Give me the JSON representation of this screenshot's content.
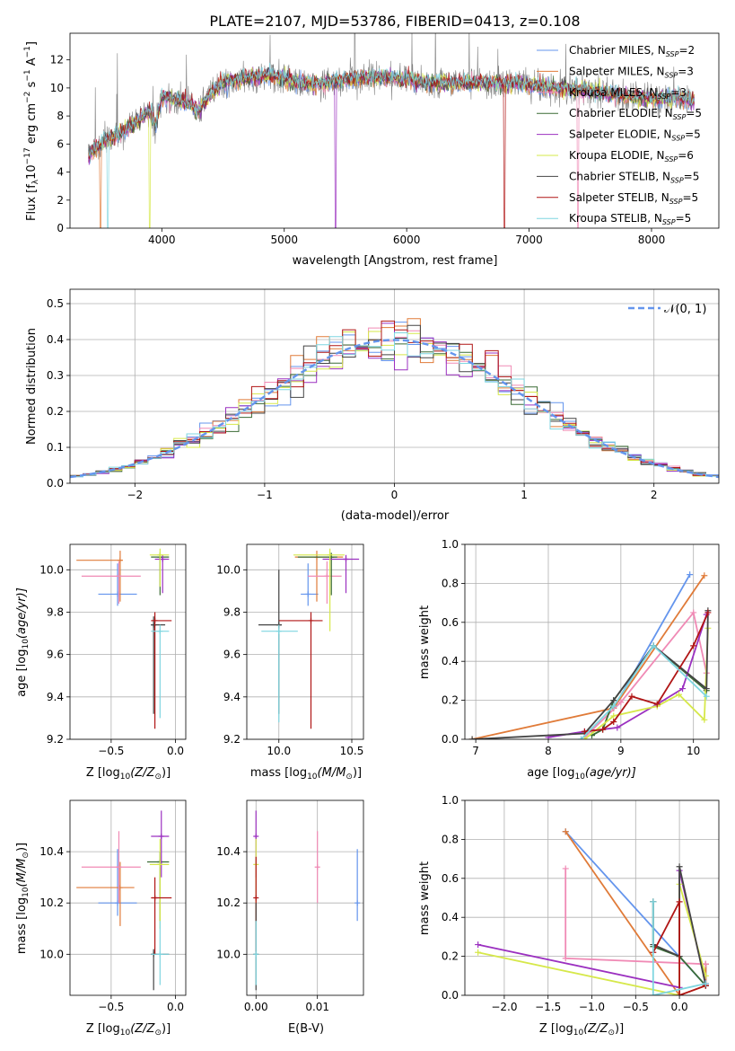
{
  "figure_title": "PLATE=2107, MJD=53786, FIBERID=0413, z=0.108",
  "colors": {
    "chabrier_miles": "#6495ed",
    "salpeter_miles": "#e07b39",
    "kroupa_miles": "#f08ab5",
    "chabrier_elodie": "#3a6b35",
    "salpeter_elodie": "#9b30c0",
    "kroupa_elodie": "#d6e84a",
    "chabrier_stelib": "#444444",
    "salpeter_stelib": "#b01515",
    "kroupa_stelib": "#7fd6e0",
    "data": "#808080"
  },
  "panels": {
    "spectrum": {
      "ylabel_main": "Flux [f",
      "ylabel_sub": "λ",
      "ylabel_rest": "10",
      "ylabel_exp1": "−17",
      "ylabel_mid": " erg cm",
      "ylabel_exp2": "−2",
      "ylabel_mid2": " s",
      "ylabel_exp3": "−1",
      "ylabel_mid3": " A",
      "ylabel_exp4": "−1",
      "ylabel_end": "]",
      "xlabel": "wavelength [Angstrom, rest frame]"
    },
    "residuals": {
      "ylabel": "Normed distribution",
      "xlabel": "(data-model)/error",
      "legend_label": "𝒩(0, 1)"
    },
    "age_z": {
      "ylabel": "age  [log",
      "ylabel_sub": "10",
      "ylabel_end": "(age/yr)]",
      "xlabel": "Z [log",
      "xlabel_sub": "10",
      "xlabel_end": "(Z/Z",
      "xlabel_sun": "⊙",
      "xlabel_close": ")]"
    },
    "age_mass": {
      "xlabel": "mass [log",
      "xlabel_sub": "10",
      "xlabel_end": "(M/M",
      "xlabel_sun": "⊙",
      "xlabel_close": ")]"
    },
    "mw_age": {
      "ylabel": "mass weight",
      "xlabel": "age  [log",
      "xlabel_sub": "10",
      "xlabel_end": "(age/yr)]"
    },
    "mass_z": {
      "ylabel": "mass [log",
      "ylabel_sub": "10",
      "ylabel_end": "(M/M",
      "ylabel_sun": "⊙",
      "ylabel_close": ")]",
      "xlabel": "Z [log",
      "xlabel_sub": "10",
      "xlabel_end": "(Z/Z",
      "xlabel_sun": "⊙",
      "xlabel_close": ")]"
    },
    "mass_ebv": {
      "xlabel": "E(B-V)"
    },
    "mw_z": {
      "ylabel": "mass weight",
      "xlabel": "Z [log",
      "xlabel_sub": "10",
      "xlabel_end": "(Z/Z",
      "xlabel_sun": "⊙",
      "xlabel_close": ")]"
    }
  },
  "chart_data": [
    {
      "id": "spectrum",
      "type": "line",
      "title": "PLATE=2107, MJD=53786, FIBERID=0413, z=0.108",
      "xlabel": "wavelength [Angstrom, rest frame]",
      "ylabel": "Flux [fλ10−17 erg cm−2 s−1 A−1]",
      "xlim": [
        3250,
        8550
      ],
      "ylim": [
        0,
        13.9
      ],
      "xticks": [
        4000,
        5000,
        6000,
        7000,
        8000
      ],
      "yticks": [
        0,
        2,
        4,
        6,
        8,
        10,
        12
      ],
      "grid": false,
      "legend": "top-right",
      "continuum_knots": {
        "x": [
          3400,
          3500,
          3600,
          3700,
          3800,
          3900,
          3950,
          4000,
          4100,
          4200,
          4300,
          4400,
          4500,
          4700,
          4900,
          5100,
          5300,
          5500,
          5800,
          6000,
          6300,
          6600,
          6900,
          7200,
          7500,
          7800,
          8000,
          8200,
          8350
        ],
        "y": [
          5.2,
          6.0,
          6.5,
          7.0,
          7.6,
          8.3,
          7.4,
          9.4,
          9.2,
          9.0,
          8.3,
          9.6,
          10.4,
          10.7,
          10.9,
          10.4,
          10.3,
          10.6,
          10.8,
          10.6,
          10.3,
          10.4,
          10.3,
          10.0,
          9.8,
          9.4,
          9.2,
          9.3,
          9.1
        ]
      },
      "series": [
        {
          "name": "Chabrier MILES, N",
          "sub": "SSP",
          "suffix": "=2",
          "color": "#6495ed"
        },
        {
          "name": "Salpeter MILES, N",
          "sub": "SSP",
          "suffix": "=3",
          "color": "#e07b39"
        },
        {
          "name": "Kroupa MILES, N",
          "sub": "SSP",
          "suffix": "=3",
          "color": "#f08ab5"
        },
        {
          "name": "Chabrier ELODIE, N",
          "sub": "SSP",
          "suffix": "=5",
          "color": "#3a6b35"
        },
        {
          "name": "Salpeter ELODIE, N",
          "sub": "SSP",
          "suffix": "=5",
          "color": "#9b30c0"
        },
        {
          "name": "Kroupa ELODIE, N",
          "sub": "SSP",
          "suffix": "=6",
          "color": "#d6e84a"
        },
        {
          "name": "Chabrier STELIB, N",
          "sub": "SSP",
          "suffix": "=5",
          "color": "#444444"
        },
        {
          "name": "Salpeter STELIB, N",
          "sub": "SSP",
          "suffix": "=5",
          "color": "#b01515"
        },
        {
          "name": "Kroupa STELIB, N",
          "sub": "SSP",
          "suffix": "=5",
          "color": "#7fd6e0"
        }
      ]
    },
    {
      "id": "residuals",
      "type": "line",
      "xlabel": "(data-model)/error",
      "ylabel": "Normed distribution",
      "xlim": [
        -2.5,
        2.5
      ],
      "ylim": [
        0,
        0.54
      ],
      "xticks": [
        -2,
        -1,
        0,
        1,
        2
      ],
      "yticks": [
        0.0,
        0.1,
        0.2,
        0.3,
        0.4,
        0.5
      ],
      "grid": true,
      "legend": "top-right",
      "bin_width": 0.1,
      "series": [
        {
          "name": "𝒩(0, 1)",
          "kind": "gaussian",
          "mu": 0,
          "sigma": 1,
          "color": "#6495ed"
        }
      ]
    },
    {
      "id": "age_vs_Z",
      "type": "scatter",
      "xlabel": "Z [log10(Z/Z⊙)]",
      "ylabel": "age  [log10(age/yr)]",
      "xlim": [
        -0.82,
        0.08
      ],
      "ylim": [
        9.2,
        10.12
      ],
      "xticks": [
        -0.5,
        0.0
      ],
      "yticks": [
        9.2,
        9.4,
        9.6,
        9.8,
        10.0
      ],
      "grid": true,
      "points": [
        {
          "color": "#6495ed",
          "x": -0.45,
          "xlo": -0.6,
          "xhi": -0.3,
          "y": 9.885,
          "ylo": 9.83,
          "yhi": 10.03
        },
        {
          "color": "#e07b39",
          "x": -0.43,
          "xlo": -0.77,
          "xhi": -0.41,
          "y": 10.045,
          "ylo": 9.85,
          "yhi": 10.09
        },
        {
          "color": "#f08ab5",
          "x": -0.44,
          "xlo": -0.73,
          "xhi": -0.27,
          "y": 9.97,
          "ylo": 9.84,
          "yhi": 10.04
        },
        {
          "color": "#3a6b35",
          "x": -0.12,
          "xlo": -0.19,
          "xhi": -0.05,
          "y": 10.06,
          "ylo": 9.88,
          "yhi": 10.08
        },
        {
          "color": "#9b30c0",
          "x": -0.1,
          "xlo": -0.16,
          "xhi": -0.05,
          "y": 10.05,
          "ylo": 9.89,
          "yhi": 10.07
        },
        {
          "color": "#d6e84a",
          "x": -0.12,
          "xlo": -0.2,
          "xhi": -0.05,
          "y": 10.07,
          "ylo": 9.92,
          "yhi": 10.1
        },
        {
          "color": "#444444",
          "x": -0.17,
          "xlo": -0.19,
          "xhi": -0.08,
          "y": 9.74,
          "ylo": 9.32,
          "yhi": 9.78
        },
        {
          "color": "#b01515",
          "x": -0.16,
          "xlo": -0.19,
          "xhi": -0.03,
          "y": 9.76,
          "ylo": 9.25,
          "yhi": 9.8
        },
        {
          "color": "#7fd6e0",
          "x": -0.12,
          "xlo": -0.19,
          "xhi": -0.05,
          "y": 9.71,
          "ylo": 9.3,
          "yhi": 9.74
        }
      ]
    },
    {
      "id": "age_vs_mass",
      "type": "scatter",
      "xlabel": "mass [log10(M/M⊙)]",
      "xlim": [
        9.78,
        10.58
      ],
      "ylim": [
        9.2,
        10.12
      ],
      "xticks": [
        10.0,
        10.5
      ],
      "yticks": [
        9.2,
        9.4,
        9.6,
        9.8,
        10.0
      ],
      "grid": true,
      "points": [
        {
          "color": "#6495ed",
          "x": 10.2,
          "xlo": 10.15,
          "xhi": 10.27,
          "y": 9.885,
          "ylo": 9.83,
          "yhi": 10.03
        },
        {
          "color": "#e07b39",
          "x": 10.26,
          "xlo": 10.11,
          "xhi": 10.44,
          "y": 10.06,
          "ylo": 9.85,
          "yhi": 10.09
        },
        {
          "color": "#f08ab5",
          "x": 10.33,
          "xlo": 10.2,
          "xhi": 10.43,
          "y": 9.97,
          "ylo": 9.84,
          "yhi": 10.04
        },
        {
          "color": "#3a6b35",
          "x": 10.36,
          "xlo": 10.13,
          "xhi": 10.4,
          "y": 10.06,
          "ylo": 9.88,
          "yhi": 10.08
        },
        {
          "color": "#9b30c0",
          "x": 10.46,
          "xlo": 10.3,
          "xhi": 10.55,
          "y": 10.05,
          "ylo": 9.89,
          "yhi": 10.07
        },
        {
          "color": "#d6e84a",
          "x": 10.35,
          "xlo": 10.1,
          "xhi": 10.45,
          "y": 10.07,
          "ylo": 9.71,
          "yhi": 10.1
        },
        {
          "color": "#444444",
          "x": 10.0,
          "xlo": 9.86,
          "xhi": 10.02,
          "y": 9.74,
          "ylo": 9.32,
          "yhi": 10.0
        },
        {
          "color": "#b01515",
          "x": 10.22,
          "xlo": 10.0,
          "xhi": 10.3,
          "y": 9.76,
          "ylo": 9.25,
          "yhi": 9.8
        },
        {
          "color": "#7fd6e0",
          "x": 10.0,
          "xlo": 9.88,
          "xhi": 10.13,
          "y": 9.71,
          "ylo": 9.28,
          "yhi": 9.74
        }
      ]
    },
    {
      "id": "massweight_vs_age",
      "type": "line",
      "xlabel": "age  [log10(age/yr)]",
      "ylabel": "mass weight",
      "xlim": [
        6.85,
        10.35
      ],
      "ylim": [
        0,
        1.0
      ],
      "xticks": [
        7,
        8,
        9,
        10
      ],
      "yticks": [
        0.0,
        0.2,
        0.4,
        0.6,
        0.8,
        1.0
      ],
      "grid": true,
      "series": [
        {
          "color": "#6495ed",
          "x": [
            8.9,
            9.95
          ],
          "y": [
            0.16,
            0.845
          ]
        },
        {
          "color": "#e07b39",
          "x": [
            6.95,
            8.9,
            10.15
          ],
          "y": [
            0.0,
            0.16,
            0.84
          ]
        },
        {
          "color": "#f08ab5",
          "x": [
            8.5,
            9.0,
            10.0,
            10.18
          ],
          "y": [
            0.01,
            0.19,
            0.65,
            0.34
          ]
        },
        {
          "color": "#3a6b35",
          "x": [
            8.6,
            8.75,
            8.9,
            9.45,
            10.18
          ],
          "y": [
            0.02,
            0.05,
            0.2,
            0.48,
            0.25
          ]
        },
        {
          "color": "#9b30c0",
          "x": [
            8.0,
            8.5,
            8.95,
            9.5,
            9.85,
            10.18
          ],
          "y": [
            0.01,
            0.04,
            0.06,
            0.18,
            0.26,
            0.64
          ]
        },
        {
          "color": "#d6e84a",
          "x": [
            8.5,
            8.9,
            9.5,
            9.8,
            10.15,
            10.2
          ],
          "y": [
            0.0,
            0.12,
            0.17,
            0.23,
            0.1,
            0.57
          ]
        },
        {
          "color": "#444444",
          "x": [
            6.95,
            8.5,
            8.9,
            9.45,
            10.18,
            10.2
          ],
          "y": [
            0.0,
            0.03,
            0.2,
            0.48,
            0.26,
            0.66
          ]
        },
        {
          "color": "#b01515",
          "x": [
            8.5,
            8.75,
            8.9,
            9.15,
            9.5,
            10.0,
            10.2
          ],
          "y": [
            0.04,
            0.05,
            0.09,
            0.22,
            0.18,
            0.48,
            0.65
          ]
        },
        {
          "color": "#7fd6e0",
          "x": [
            8.45,
            8.9,
            9.45,
            10.18
          ],
          "y": [
            0.0,
            0.17,
            0.48,
            0.22
          ]
        }
      ]
    },
    {
      "id": "mass_vs_Z",
      "type": "scatter",
      "xlabel": "Z [log10(Z/Z⊙)]",
      "ylabel": "mass [log10(M/M⊙)]",
      "xlim": [
        -0.82,
        0.08
      ],
      "ylim": [
        9.84,
        10.6
      ],
      "xticks": [
        -0.5,
        0.0
      ],
      "yticks": [
        10.0,
        10.2,
        10.4
      ],
      "grid": true,
      "points": [
        {
          "color": "#6495ed",
          "x": -0.45,
          "xlo": -0.6,
          "xhi": -0.3,
          "y": 10.2,
          "ylo": 10.15,
          "yhi": 10.41
        },
        {
          "color": "#e07b39",
          "x": -0.43,
          "xlo": -0.77,
          "xhi": -0.32,
          "y": 10.26,
          "ylo": 10.11,
          "yhi": 10.36
        },
        {
          "color": "#f08ab5",
          "x": -0.44,
          "xlo": -0.73,
          "xhi": -0.27,
          "y": 10.34,
          "ylo": 10.2,
          "yhi": 10.48
        },
        {
          "color": "#3a6b35",
          "x": -0.12,
          "xlo": -0.22,
          "xhi": -0.05,
          "y": 10.36,
          "ylo": 10.13,
          "yhi": 10.4
        },
        {
          "color": "#9b30c0",
          "x": -0.11,
          "xlo": -0.19,
          "xhi": -0.05,
          "y": 10.46,
          "ylo": 10.3,
          "yhi": 10.56
        },
        {
          "color": "#d6e84a",
          "x": -0.12,
          "xlo": -0.2,
          "xhi": -0.05,
          "y": 10.35,
          "ylo": 10.1,
          "yhi": 10.45
        },
        {
          "color": "#444444",
          "x": -0.17,
          "xlo": -0.19,
          "xhi": -0.05,
          "y": 10.0,
          "ylo": 9.86,
          "yhi": 10.02
        },
        {
          "color": "#b01515",
          "x": -0.16,
          "xlo": -0.19,
          "xhi": -0.03,
          "y": 10.22,
          "ylo": 10.0,
          "yhi": 10.3
        },
        {
          "color": "#7fd6e0",
          "x": -0.12,
          "xlo": -0.19,
          "xhi": -0.05,
          "y": 10.0,
          "ylo": 9.88,
          "yhi": 10.13
        }
      ]
    },
    {
      "id": "mass_vs_ebv",
      "type": "scatter",
      "xlabel": "E(B-V)",
      "xlim": [
        -0.0015,
        0.0175
      ],
      "ylim": [
        9.84,
        10.6
      ],
      "xticks": [
        0.0,
        0.01
      ],
      "yticks": [
        10.0,
        10.2,
        10.4
      ],
      "grid": true,
      "points": [
        {
          "color": "#6495ed",
          "x": 0.0165,
          "y": 10.2,
          "ylo": 10.13,
          "yhi": 10.41
        },
        {
          "color": "#f08ab5",
          "x": 0.01,
          "y": 10.34,
          "ylo": 10.2,
          "yhi": 10.48
        },
        {
          "color": "#9b30c0",
          "x": 0.0,
          "y": 10.46,
          "ylo": 10.3,
          "yhi": 10.56
        },
        {
          "color": "#d6e84a",
          "x": 0.0,
          "y": 10.35,
          "ylo": 10.1,
          "yhi": 10.45
        },
        {
          "color": "#b01515",
          "x": 0.0,
          "y": 10.22,
          "ylo": 10.0,
          "yhi": 10.38
        },
        {
          "color": "#444444",
          "x": 0.0,
          "y": 10.0,
          "ylo": 9.86,
          "yhi": 10.2
        },
        {
          "color": "#7fd6e0",
          "x": 0.0,
          "y": 10.0,
          "ylo": 9.88,
          "yhi": 10.13
        }
      ]
    },
    {
      "id": "massweight_vs_Z",
      "type": "line",
      "xlabel": "Z [log10(Z/Z⊙)]",
      "ylabel": "mass weight",
      "xlim": [
        -2.45,
        0.45
      ],
      "ylim": [
        0,
        1.0
      ],
      "xticks": [
        -2.0,
        -1.5,
        -1.0,
        -0.5,
        0.0
      ],
      "yticks": [
        0.0,
        0.2,
        0.4,
        0.6,
        0.8,
        1.0
      ],
      "grid": true,
      "series": [
        {
          "color": "#6495ed",
          "x": [
            -1.3,
            0.3,
            0.3
          ],
          "y": [
            0.84,
            0.05,
            0.16
          ]
        },
        {
          "color": "#e07b39",
          "x": [
            -1.3,
            0.0,
            0.3,
            0.3
          ],
          "y": [
            0.84,
            0.0,
            0.05,
            0.16
          ]
        },
        {
          "color": "#f08ab5",
          "x": [
            -1.3,
            -1.3,
            0.3
          ],
          "y": [
            0.65,
            0.19,
            0.16
          ]
        },
        {
          "color": "#3a6b35",
          "x": [
            -0.3,
            -0.3,
            0.0,
            0.3
          ],
          "y": [
            0.48,
            0.25,
            0.2,
            0.05
          ]
        },
        {
          "color": "#9b30c0",
          "x": [
            -2.3,
            0.0,
            0.0,
            0.3
          ],
          "y": [
            0.26,
            0.04,
            0.64,
            0.06
          ]
        },
        {
          "color": "#d6e84a",
          "x": [
            -2.3,
            0.0,
            0.0,
            0.3
          ],
          "y": [
            0.22,
            0.0,
            0.57,
            0.1
          ]
        },
        {
          "color": "#444444",
          "x": [
            -0.3,
            -0.3,
            0.0,
            0.0,
            0.3
          ],
          "y": [
            0.48,
            0.26,
            0.2,
            0.66,
            0.05
          ]
        },
        {
          "color": "#b01515",
          "x": [
            -0.3,
            0.0,
            0.0,
            0.3
          ],
          "y": [
            0.22,
            0.48,
            0.0,
            0.05
          ]
        },
        {
          "color": "#7fd6e0",
          "x": [
            -0.3,
            -0.3,
            0.3
          ],
          "y": [
            0.48,
            0.0,
            0.06
          ]
        }
      ]
    }
  ]
}
